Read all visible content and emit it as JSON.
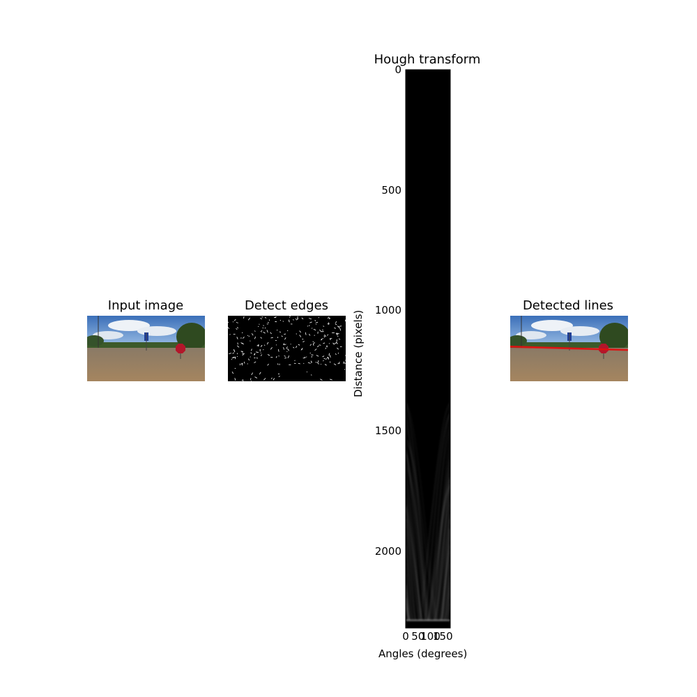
{
  "panels": {
    "input": {
      "title": "Input image"
    },
    "edges": {
      "title": "Detect edges"
    },
    "lines": {
      "title": "Detected lines"
    }
  },
  "chart_data": {
    "type": "heatmap",
    "title": "Hough transform",
    "xlabel": "Angles (degrees)",
    "ylabel": "Distance (pixels)",
    "xlim": [
      0,
      180
    ],
    "ylim": [
      2320,
      0
    ],
    "x_ticks": [
      0,
      50,
      100,
      150
    ],
    "y_ticks": [
      0,
      500,
      1000,
      1500,
      2000
    ],
    "grid": false
  },
  "colors": {
    "sky": "#4a7fc4",
    "water": "#9b8266",
    "trees": "#3c5a2a",
    "stop_sign": "#b3162a",
    "detected_line": "#e01010"
  }
}
